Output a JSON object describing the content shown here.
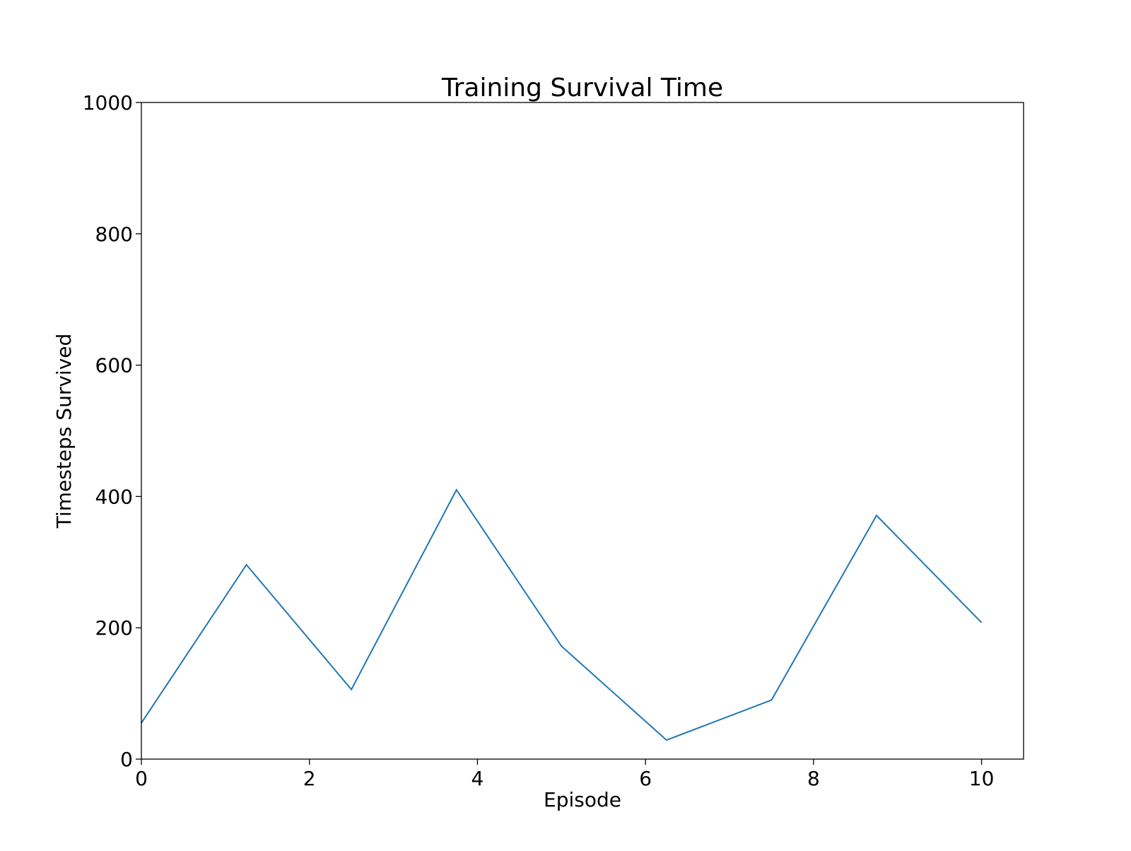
{
  "chart_data": {
    "type": "line",
    "title": "Training Survival Time",
    "xlabel": "Episode",
    "ylabel": "Timesteps Survived",
    "xlim": [
      0,
      10.5
    ],
    "ylim": [
      0,
      1000
    ],
    "xticks": [
      0,
      2,
      4,
      6,
      8,
      10
    ],
    "yticks": [
      0,
      200,
      400,
      600,
      800,
      1000
    ],
    "grid": false,
    "series": [
      {
        "color": "#1f77b4",
        "x": [
          0,
          1.25,
          2.5,
          3.75,
          5.0,
          6.25,
          7.5,
          8.75,
          10.0
        ],
        "y": [
          55,
          296,
          106,
          410,
          172,
          29,
          90,
          371,
          208
        ]
      }
    ]
  }
}
